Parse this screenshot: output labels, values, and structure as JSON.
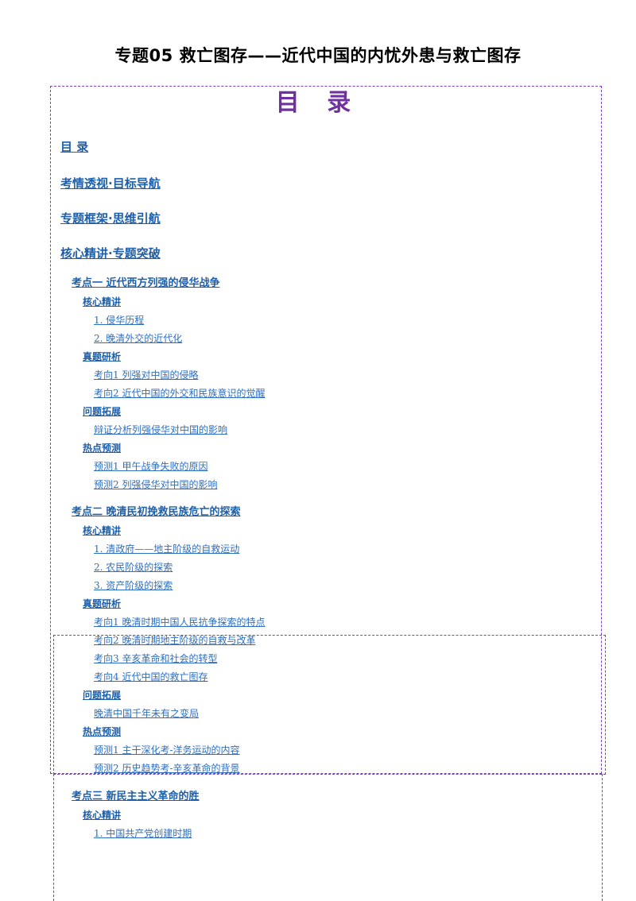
{
  "document": {
    "title": "专题05 救亡图存——近代中国的内忧外患与救亡图存",
    "toc_heading": "目 录"
  },
  "toc": [
    {
      "level": 1,
      "text": "目  录"
    },
    {
      "level": 1,
      "text": "考情透视·目标导航"
    },
    {
      "level": 1,
      "text": "专题框架·思维引航"
    },
    {
      "level": 1,
      "text": "核心精讲·专题突破"
    },
    {
      "level": 2,
      "text": "考点一    近代西方列强的侵华战争"
    },
    {
      "level": 3,
      "text": "核心精讲"
    },
    {
      "level": 4,
      "text": "1. 侵华历程"
    },
    {
      "level": 4,
      "text": "2. 晚清外交的近代化"
    },
    {
      "level": 3,
      "text": "真题研析"
    },
    {
      "level": 4,
      "text": "考向1    列强对中国的侵略"
    },
    {
      "level": 4,
      "text": "考向2    近代中国的外交和民族意识的觉醒"
    },
    {
      "level": 3,
      "text": "问题拓展"
    },
    {
      "level": 4,
      "text": "辩证分析列强侵华对中国的影响"
    },
    {
      "level": 3,
      "text": "热点预测"
    },
    {
      "level": 4,
      "text": "预测1    甲午战争失败的原因"
    },
    {
      "level": 4,
      "text": "预测2    列强侵华对中国的影响"
    },
    {
      "level": 2,
      "text": "考点二 晚清民初挽救民族危亡的探索"
    },
    {
      "level": 3,
      "text": "核心精讲"
    },
    {
      "level": 4,
      "text": "1.  清政府——地主阶级的自救运动"
    },
    {
      "level": 4,
      "text": "2. 农民阶级的探索"
    },
    {
      "level": 4,
      "text": "3. 资产阶级的探索"
    },
    {
      "level": 3,
      "text": "真题研析"
    },
    {
      "level": 4,
      "text": "考向1    晚清时期中国人民抗争探索的特点"
    },
    {
      "level": 4,
      "text": "考向2    晚清时期地主阶级的自救与改革"
    },
    {
      "level": 4,
      "text": "考向3    辛亥革命和社会的转型"
    },
    {
      "level": 4,
      "text": "考向4 近代中国的救亡图存"
    },
    {
      "level": 3,
      "text": "问题拓展"
    },
    {
      "level": 4,
      "text": "晚清中国千年未有之变局"
    },
    {
      "level": 3,
      "text": "热点预测"
    },
    {
      "level": 4,
      "text": "预测1    主干深化考-洋务运动的内容"
    },
    {
      "level": 4,
      "text": "预测2    历史趋势考-辛亥革命的背景"
    },
    {
      "level": 2,
      "text": "考点三 新民主主义革命的胜"
    },
    {
      "level": 3,
      "text": "核心精讲"
    },
    {
      "level": 4,
      "text": "1. 中国共产党创建时期"
    }
  ],
  "colors": {
    "link": "#1f5faa",
    "toc_heading": "#7030a0",
    "frame": "#7a3fc7"
  }
}
